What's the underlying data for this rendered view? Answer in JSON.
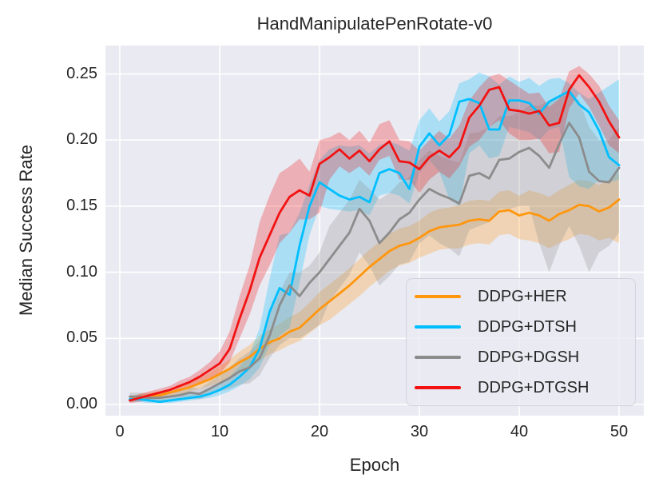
{
  "title": "HandManipulatePenRotate-v0",
  "chart_data": {
    "type": "line",
    "title": "HandManipulatePenRotate-v0",
    "xlabel": "Epoch",
    "ylabel": "Median Success Rate",
    "x_ticks": [
      "0",
      "10",
      "20",
      "30",
      "40",
      "50"
    ],
    "x_tick_values": [
      0,
      10,
      20,
      30,
      40,
      50
    ],
    "y_ticks": [
      "0.00",
      "0.05",
      "0.10",
      "0.15",
      "0.20",
      "0.25"
    ],
    "y_tick_values": [
      0,
      0.05,
      0.1,
      0.15,
      0.2,
      0.25
    ],
    "xlim": [
      -1.45,
      52.45
    ],
    "ylim": [
      -0.0085,
      0.2715
    ],
    "grid": true,
    "grid_color": "#ffffff",
    "axes_background": "#eaeaf2",
    "text_color": "#262626",
    "legend_position": "lower right",
    "band_opacity": 0.27,
    "x": [
      1,
      2,
      3,
      4,
      5,
      6,
      7,
      8,
      9,
      10,
      11,
      12,
      13,
      14,
      15,
      16,
      17,
      18,
      19,
      20,
      21,
      22,
      23,
      24,
      25,
      26,
      27,
      28,
      29,
      30,
      31,
      32,
      33,
      34,
      35,
      36,
      37,
      38,
      39,
      40,
      41,
      42,
      43,
      44,
      45,
      46,
      47,
      48,
      49,
      50
    ],
    "series": [
      {
        "name": "DDPG+HER",
        "color": "#ff960d",
        "median": [
          0.004,
          0.005,
          0.006,
          0.007,
          0.009,
          0.011,
          0.013,
          0.016,
          0.019,
          0.023,
          0.027,
          0.032,
          0.036,
          0.042,
          0.047,
          0.05,
          0.055,
          0.058,
          0.065,
          0.072,
          0.078,
          0.084,
          0.09,
          0.097,
          0.104,
          0.11,
          0.116,
          0.12,
          0.122,
          0.126,
          0.131,
          0.134,
          0.135,
          0.136,
          0.139,
          0.14,
          0.139,
          0.146,
          0.147,
          0.143,
          0.145,
          0.143,
          0.139,
          0.144,
          0.147,
          0.151,
          0.15,
          0.146,
          0.149,
          0.155
        ],
        "band_lo": [
          0.002,
          0.003,
          0.004,
          0.005,
          0.006,
          0.008,
          0.01,
          0.012,
          0.014,
          0.017,
          0.02,
          0.024,
          0.028,
          0.033,
          0.038,
          0.041,
          0.045,
          0.048,
          0.054,
          0.06,
          0.064,
          0.07,
          0.076,
          0.082,
          0.089,
          0.095,
          0.101,
          0.105,
          0.107,
          0.111,
          0.114,
          0.117,
          0.118,
          0.118,
          0.121,
          0.122,
          0.121,
          0.128,
          0.129,
          0.125,
          0.124,
          0.122,
          0.118,
          0.122,
          0.125,
          0.129,
          0.128,
          0.124,
          0.126,
          0.122
        ],
        "band_hi": [
          0.006,
          0.008,
          0.009,
          0.01,
          0.012,
          0.015,
          0.017,
          0.02,
          0.024,
          0.029,
          0.034,
          0.04,
          0.045,
          0.052,
          0.057,
          0.061,
          0.066,
          0.07,
          0.077,
          0.085,
          0.091,
          0.097,
          0.103,
          0.11,
          0.117,
          0.123,
          0.129,
          0.133,
          0.135,
          0.139,
          0.145,
          0.148,
          0.149,
          0.151,
          0.154,
          0.155,
          0.154,
          0.161,
          0.162,
          0.158,
          0.162,
          0.16,
          0.157,
          0.162,
          0.166,
          0.17,
          0.169,
          0.166,
          0.17,
          0.175
        ]
      },
      {
        "name": "DDPG+DTSH",
        "color": "#00bfff",
        "median": [
          0.004,
          0.004,
          0.003,
          0.002,
          0.003,
          0.004,
          0.005,
          0.006,
          0.008,
          0.011,
          0.015,
          0.021,
          0.028,
          0.042,
          0.07,
          0.088,
          0.083,
          0.12,
          0.15,
          0.168,
          0.163,
          0.158,
          0.155,
          0.157,
          0.153,
          0.175,
          0.178,
          0.175,
          0.163,
          0.195,
          0.205,
          0.196,
          0.204,
          0.229,
          0.231,
          0.228,
          0.208,
          0.208,
          0.23,
          0.23,
          0.228,
          0.22,
          0.229,
          0.233,
          0.237,
          0.227,
          0.221,
          0.207,
          0.187,
          0.181
        ],
        "band_lo": [
          0.002,
          0.002,
          0.001,
          0.001,
          0.001,
          0.002,
          0.003,
          0.004,
          0.005,
          0.007,
          0.01,
          0.014,
          0.019,
          0.028,
          0.045,
          0.052,
          0.058,
          0.092,
          0.128,
          0.15,
          0.148,
          0.147,
          0.146,
          0.147,
          0.143,
          0.158,
          0.16,
          0.158,
          0.152,
          0.175,
          0.185,
          0.176,
          0.155,
          0.15,
          0.19,
          0.196,
          0.186,
          0.188,
          0.21,
          0.208,
          0.206,
          0.2,
          0.208,
          0.21,
          0.172,
          0.165,
          0.163,
          0.17,
          0.168,
          0.17
        ],
        "band_hi": [
          0.006,
          0.006,
          0.005,
          0.004,
          0.005,
          0.006,
          0.008,
          0.009,
          0.012,
          0.016,
          0.021,
          0.029,
          0.038,
          0.058,
          0.095,
          0.128,
          0.13,
          0.145,
          0.166,
          0.185,
          0.193,
          0.196,
          0.195,
          0.196,
          0.19,
          0.196,
          0.199,
          0.196,
          0.192,
          0.215,
          0.224,
          0.214,
          0.222,
          0.243,
          0.246,
          0.251,
          0.248,
          0.242,
          0.248,
          0.244,
          0.247,
          0.241,
          0.246,
          0.247,
          0.243,
          0.236,
          0.231,
          0.236,
          0.241,
          0.246
        ]
      },
      {
        "name": "DDPG+DGSH",
        "color": "#8c8c8c",
        "median": [
          0.006,
          0.006,
          0.005,
          0.005,
          0.006,
          0.007,
          0.009,
          0.008,
          0.012,
          0.016,
          0.02,
          0.025,
          0.028,
          0.035,
          0.052,
          0.075,
          0.09,
          0.082,
          0.092,
          0.1,
          0.11,
          0.12,
          0.13,
          0.148,
          0.139,
          0.122,
          0.13,
          0.14,
          0.145,
          0.155,
          0.163,
          0.159,
          0.156,
          0.152,
          0.173,
          0.175,
          0.171,
          0.185,
          0.186,
          0.191,
          0.194,
          0.188,
          0.179,
          0.197,
          0.213,
          0.202,
          0.176,
          0.169,
          0.168,
          0.179
        ],
        "band_lo": [
          0.003,
          0.003,
          0.002,
          0.002,
          0.003,
          0.004,
          0.005,
          0.004,
          0.007,
          0.01,
          0.012,
          0.015,
          0.016,
          0.022,
          0.035,
          0.045,
          0.05,
          0.05,
          0.055,
          0.06,
          0.078,
          0.088,
          0.098,
          0.115,
          0.105,
          0.09,
          0.097,
          0.106,
          0.108,
          0.122,
          0.128,
          0.122,
          0.118,
          0.112,
          0.132,
          0.135,
          0.138,
          0.148,
          0.148,
          0.15,
          0.15,
          0.122,
          0.1,
          0.12,
          0.135,
          0.12,
          0.1,
          0.115,
          0.12,
          0.13
        ],
        "band_hi": [
          0.009,
          0.009,
          0.008,
          0.008,
          0.009,
          0.01,
          0.013,
          0.012,
          0.017,
          0.022,
          0.028,
          0.035,
          0.04,
          0.048,
          0.068,
          0.085,
          0.1,
          0.1,
          0.105,
          0.115,
          0.135,
          0.145,
          0.155,
          0.17,
          0.163,
          0.155,
          0.16,
          0.168,
          0.172,
          0.185,
          0.192,
          0.188,
          0.185,
          0.183,
          0.205,
          0.206,
          0.21,
          0.218,
          0.218,
          0.221,
          0.226,
          0.226,
          0.23,
          0.232,
          0.235,
          0.23,
          0.21,
          0.2,
          0.2,
          0.21
        ]
      },
      {
        "name": "DDPG+DTGSH",
        "color": "#f21212",
        "median": [
          0.003,
          0.005,
          0.007,
          0.009,
          0.011,
          0.014,
          0.017,
          0.021,
          0.026,
          0.031,
          0.042,
          0.065,
          0.086,
          0.111,
          0.128,
          0.145,
          0.157,
          0.162,
          0.158,
          0.182,
          0.187,
          0.193,
          0.186,
          0.192,
          0.184,
          0.193,
          0.199,
          0.184,
          0.183,
          0.178,
          0.187,
          0.192,
          0.187,
          0.195,
          0.217,
          0.226,
          0.238,
          0.24,
          0.223,
          0.222,
          0.22,
          0.222,
          0.211,
          0.213,
          0.238,
          0.249,
          0.24,
          0.229,
          0.214,
          0.202
        ],
        "band_lo": [
          0.001,
          0.002,
          0.004,
          0.006,
          0.008,
          0.01,
          0.013,
          0.016,
          0.02,
          0.023,
          0.032,
          0.05,
          0.068,
          0.09,
          0.105,
          0.122,
          0.13,
          0.14,
          0.14,
          0.145,
          0.17,
          0.18,
          0.175,
          0.18,
          0.173,
          0.185,
          0.188,
          0.17,
          0.17,
          0.16,
          0.17,
          0.176,
          0.171,
          0.18,
          0.195,
          0.2,
          0.21,
          0.215,
          0.205,
          0.2,
          0.2,
          0.201,
          0.19,
          0.191,
          0.224,
          0.235,
          0.225,
          0.211,
          0.196,
          0.19
        ],
        "band_hi": [
          0.005,
          0.008,
          0.01,
          0.012,
          0.014,
          0.018,
          0.021,
          0.026,
          0.032,
          0.04,
          0.055,
          0.082,
          0.105,
          0.138,
          0.158,
          0.175,
          0.18,
          0.186,
          0.176,
          0.2,
          0.202,
          0.206,
          0.2,
          0.207,
          0.198,
          0.212,
          0.215,
          0.2,
          0.199,
          0.192,
          0.2,
          0.207,
          0.201,
          0.211,
          0.23,
          0.24,
          0.248,
          0.25,
          0.245,
          0.24,
          0.235,
          0.236,
          0.225,
          0.231,
          0.252,
          0.256,
          0.25,
          0.241,
          0.226,
          0.215
        ]
      }
    ]
  }
}
